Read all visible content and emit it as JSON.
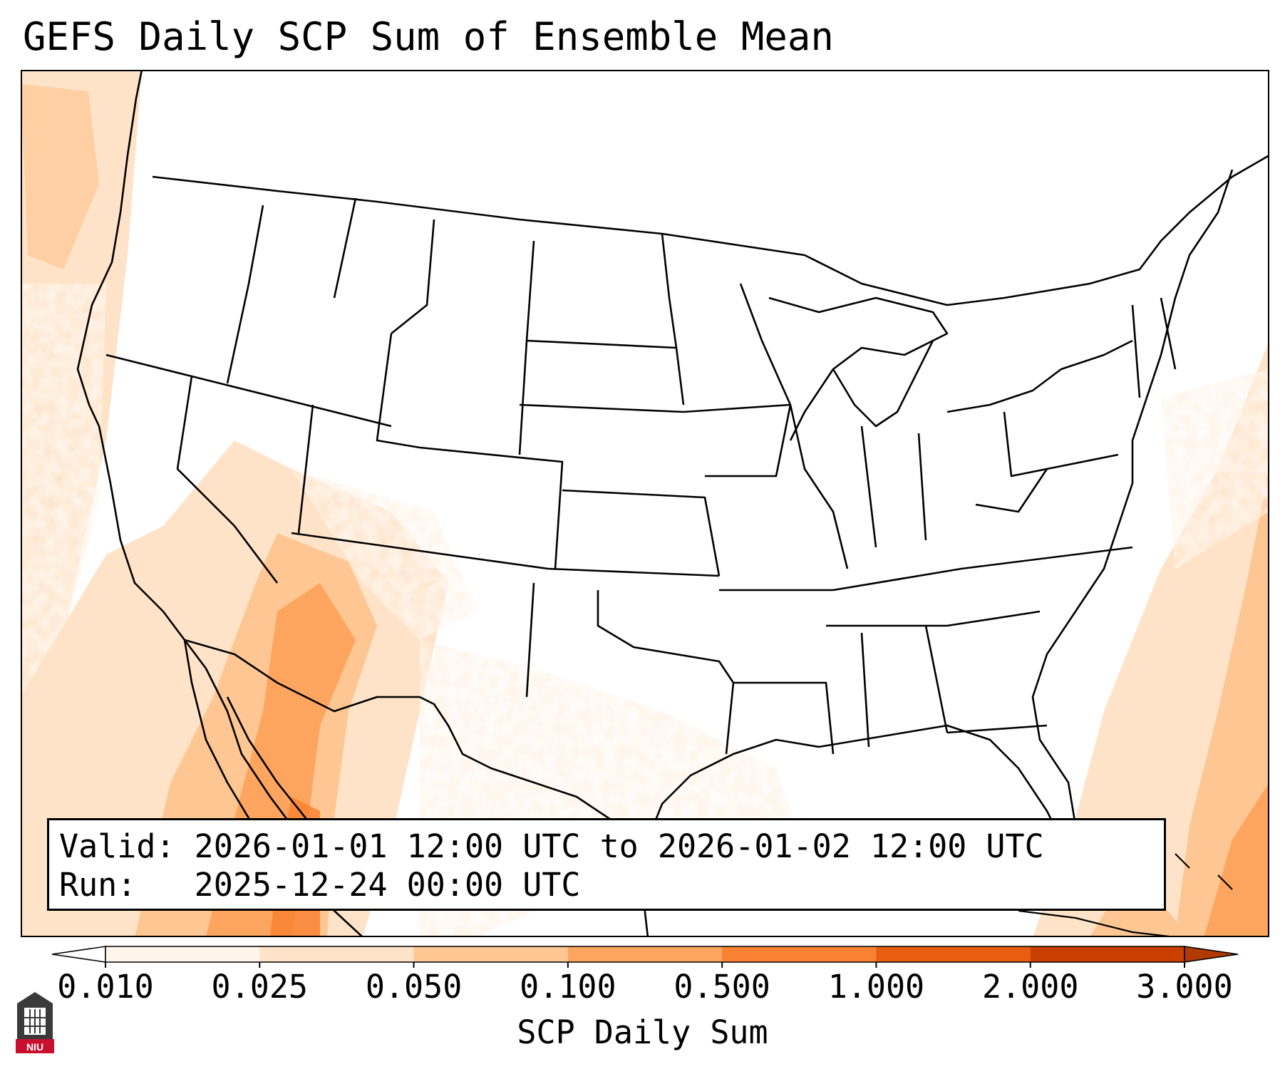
{
  "title": "GEFS Daily SCP Sum of Ensemble Mean",
  "valid_box": {
    "line1": "Valid: 2026-01-01 12:00 UTC to 2026-01-02 12:00 UTC",
    "line2": "Run:   2025-12-24 00:00 UTC"
  },
  "colorbar": {
    "label": "SCP Daily Sum",
    "ticks": [
      "0.010",
      "0.025",
      "0.050",
      "0.100",
      "0.500",
      "1.000",
      "2.000",
      "3.000"
    ],
    "colors": [
      "#fff5eb",
      "#fee3c8",
      "#fdc692",
      "#fda55e",
      "#f98232",
      "#e85d11",
      "#c94002"
    ]
  },
  "logo": {
    "text": "NIU"
  },
  "map": {
    "region": "Continental United States",
    "field_colors": {
      "very_light": "#fff5eb",
      "light": "#fee3c8",
      "medium": "#fdc692",
      "strong": "#fda55e",
      "stronger": "#f98232"
    }
  }
}
